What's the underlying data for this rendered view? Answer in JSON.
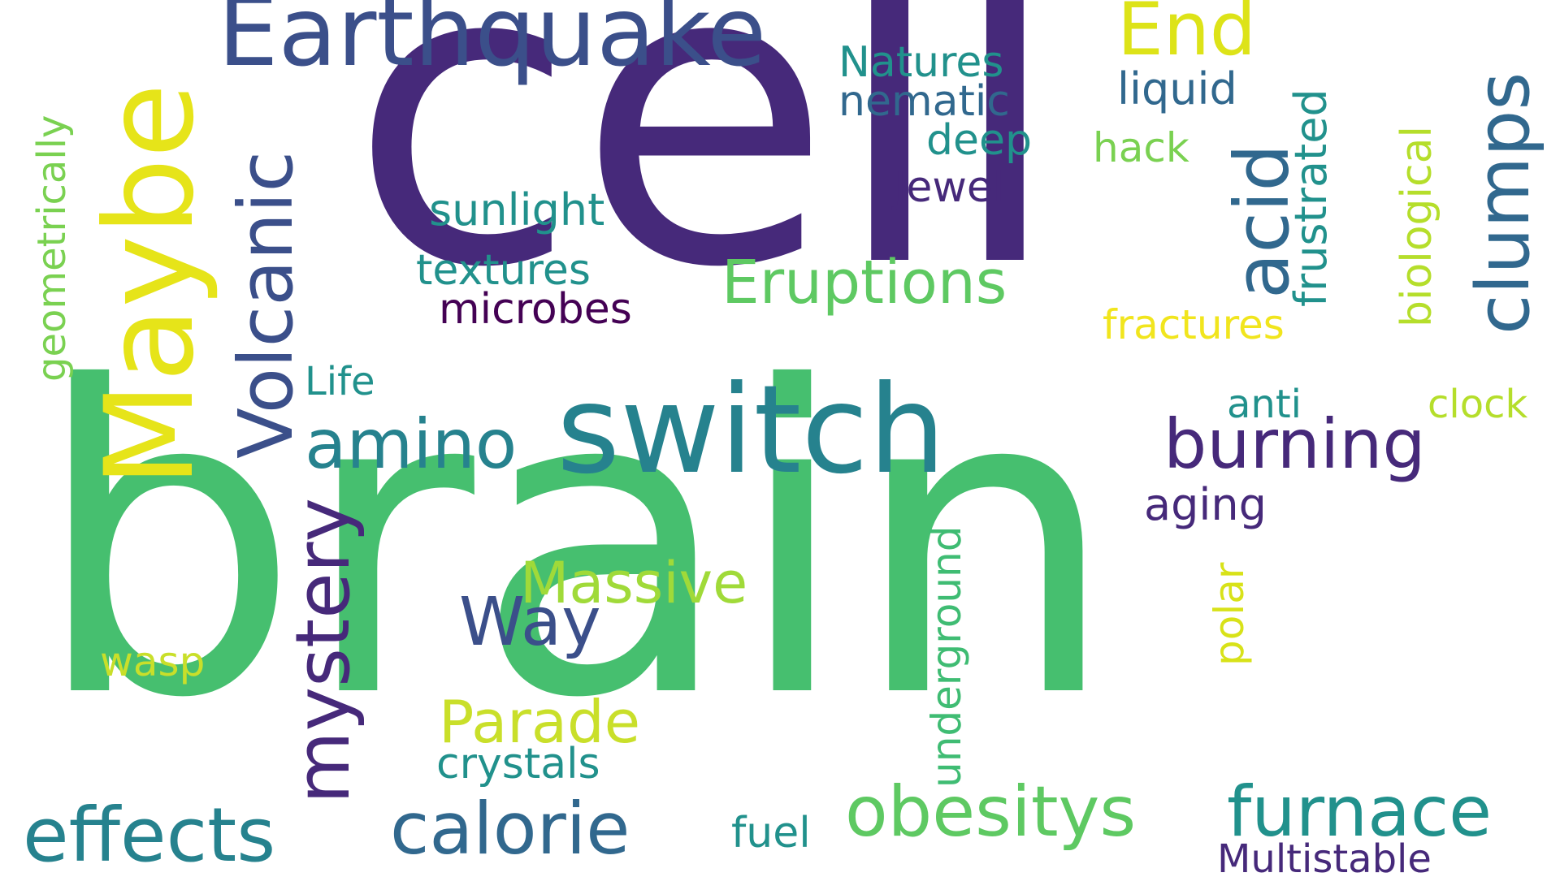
{
  "words": {
    "cell": "cell",
    "brain": "brain",
    "switch": "switch",
    "maybe": "Maybe",
    "earthquake": "Earthquake",
    "volcanic": "Volcanic",
    "amino": "amino",
    "mystery": "mystery",
    "effects": "effects",
    "calorie": "calorie",
    "obesitys": "obesitys",
    "furnace": "furnace",
    "burning": "burning",
    "clumps": "clumps",
    "acid": "acid",
    "eruptions": "Eruptions",
    "massive": "Massive",
    "way": "Way",
    "parade": "Parade",
    "end": "End",
    "natures": "Natures",
    "nematic": "nematic",
    "deep": "deep",
    "jewel": "Jewel",
    "sunlight": "sunlight",
    "textures": "textures",
    "microbes": "microbes",
    "life": "Life",
    "liquid": "liquid",
    "hack": "hack",
    "frustrated": "frustrated",
    "biological": "biological",
    "fractures": "fractures",
    "anti": "anti",
    "clock": "clock",
    "aging": "aging",
    "polar": "polar",
    "underground": "underground",
    "geometrically": "geometrically",
    "wasp": "wasp",
    "crystals": "crystals",
    "fuel": "fuel",
    "multistable": "Multistable"
  },
  "palette": {
    "dark_purple": "#46297a",
    "deep_purple": "#440154",
    "indigo": "#3b4f8a",
    "blue_slate": "#31688e",
    "teal": "#26828e",
    "teal_green": "#21918c",
    "green": "#3fbc73",
    "light_green": "#5ec962",
    "yellow_green": "#a0da39",
    "yellow": "#e5e419"
  }
}
